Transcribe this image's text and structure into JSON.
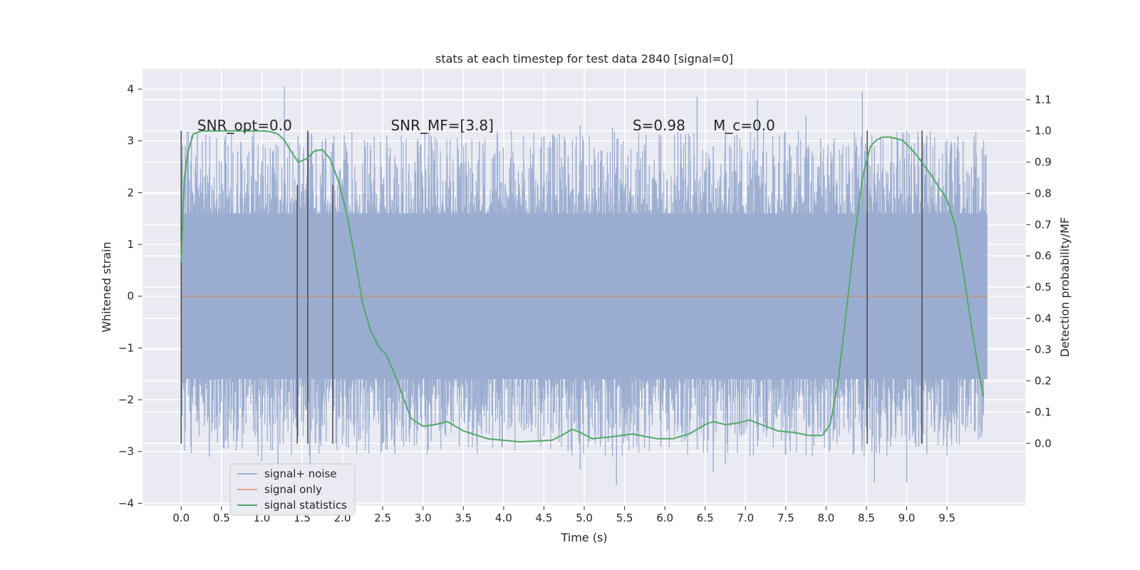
{
  "chart_data": {
    "type": "line",
    "title": "stats at each timestep for test data 2840 [signal=0]",
    "xlabel": "Time (s)",
    "ylabel": "Whitened strain",
    "y2label": "Detection probability/MF",
    "xlim": [
      -0.48,
      10.48
    ],
    "ylim": [
      -4.05,
      4.4
    ],
    "y2lim": [
      -0.2,
      1.2
    ],
    "xticks": [
      0.0,
      0.5,
      1.0,
      1.5,
      2.0,
      2.5,
      3.0,
      3.5,
      4.0,
      4.5,
      5.0,
      5.5,
      6.0,
      6.5,
      7.0,
      7.5,
      8.0,
      8.5,
      9.0,
      9.5
    ],
    "xtick_labels": [
      "0.0",
      "0.5",
      "1.0",
      "1.5",
      "2.0",
      "2.5",
      "3.0",
      "3.5",
      "4.0",
      "4.5",
      "5.0",
      "5.5",
      "6.0",
      "6.5",
      "7.0",
      "7.5",
      "8.0",
      "8.5",
      "9.0",
      "9.5"
    ],
    "yticks": [
      -4,
      -3,
      -2,
      -1,
      0,
      1,
      2,
      3,
      4
    ],
    "ytick_labels": [
      "−4",
      "−3",
      "−2",
      "−1",
      "0",
      "1",
      "2",
      "3",
      "4"
    ],
    "y2ticks": [
      0.0,
      0.1,
      0.2,
      0.3,
      0.4,
      0.5,
      0.6,
      0.7,
      0.8,
      0.9,
      1.0,
      1.1
    ],
    "y2tick_labels": [
      "0.0",
      "0.1",
      "0.2",
      "0.3",
      "0.4",
      "0.5",
      "0.6",
      "0.7",
      "0.8",
      "0.9",
      "1.0",
      "1.1"
    ],
    "grid": true,
    "legend_position": "lower-left",
    "annotations": [
      {
        "text": "SNR_opt=0.0",
        "x": 0.2,
        "y": 3.2
      },
      {
        "text": "SNR_MF=[3.8]",
        "x": 2.6,
        "y": 3.2
      },
      {
        "text": "S=0.98",
        "x": 5.6,
        "y": 3.2
      },
      {
        "text": "M_c=0.0",
        "x": 6.6,
        "y": 3.2
      }
    ],
    "vertical_lines": [
      {
        "x": 0.0,
        "ymin": -2.85,
        "ymax": 3.2
      },
      {
        "x": 1.44,
        "ymin": -2.85,
        "ymax": 2.15
      },
      {
        "x": 1.57,
        "ymin": -2.85,
        "ymax": 3.2
      },
      {
        "x": 1.88,
        "ymin": -2.85,
        "ymax": 2.15
      },
      {
        "x": 8.51,
        "ymin": -2.85,
        "ymax": 3.2
      },
      {
        "x": 9.19,
        "ymin": -2.85,
        "ymax": 3.2
      }
    ],
    "series": [
      {
        "name": "signal+ noise",
        "color": "#4c72b0",
        "axis": "left",
        "x_range": [
          0.0,
          10.0
        ],
        "core_band": [
          -1.6,
          1.6
        ],
        "spikes": [
          [
            0.05,
            2.9,
            -2.6
          ],
          [
            0.12,
            2.6,
            -2.9
          ],
          [
            0.2,
            3.15,
            -2.2
          ],
          [
            0.35,
            2.5,
            -3.1
          ],
          [
            0.55,
            3.1,
            -2.8
          ],
          [
            0.7,
            2.8,
            -2.4
          ],
          [
            0.9,
            3.2,
            -2.6
          ],
          [
            1.0,
            2.6,
            -3.2
          ],
          [
            1.2,
            2.9,
            -3.3
          ],
          [
            1.28,
            4.05,
            -2.4
          ],
          [
            1.45,
            3.1,
            -2.7
          ],
          [
            1.6,
            2.5,
            -3.4
          ],
          [
            1.75,
            3.0,
            -2.5
          ],
          [
            2.05,
            2.8,
            -2.9
          ],
          [
            2.4,
            2.5,
            -2.3
          ],
          [
            2.55,
            3.1,
            -2.7
          ],
          [
            2.65,
            2.7,
            -3.05
          ],
          [
            2.9,
            2.6,
            -2.5
          ],
          [
            3.1,
            3.1,
            -2.8
          ],
          [
            3.3,
            2.7,
            -2.3
          ],
          [
            3.45,
            2.5,
            -2.9
          ],
          [
            3.7,
            3.0,
            -2.5
          ],
          [
            3.95,
            2.8,
            -2.8
          ],
          [
            4.25,
            2.6,
            -2.6
          ],
          [
            4.5,
            3.1,
            -2.7
          ],
          [
            4.8,
            2.7,
            -3.0
          ],
          [
            4.95,
            3.3,
            -3.35
          ],
          [
            5.2,
            2.6,
            -2.9
          ],
          [
            5.35,
            3.25,
            -3.1
          ],
          [
            5.4,
            2.5,
            -3.65
          ],
          [
            5.75,
            2.8,
            -2.4
          ],
          [
            5.95,
            3.1,
            -2.9
          ],
          [
            6.2,
            2.6,
            -2.5
          ],
          [
            6.4,
            3.85,
            -2.7
          ],
          [
            6.6,
            2.9,
            -3.4
          ],
          [
            6.75,
            3.2,
            -3.25
          ],
          [
            6.95,
            2.6,
            -2.7
          ],
          [
            7.15,
            3.8,
            -2.9
          ],
          [
            7.35,
            2.7,
            -2.4
          ],
          [
            7.55,
            2.9,
            -2.8
          ],
          [
            7.75,
            3.5,
            -2.3
          ],
          [
            7.9,
            2.5,
            -2.7
          ],
          [
            8.1,
            3.05,
            -2.6
          ],
          [
            8.45,
            3.95,
            -2.8
          ],
          [
            8.6,
            2.9,
            -3.6
          ],
          [
            8.8,
            2.6,
            -2.9
          ],
          [
            9.0,
            3.2,
            -3.6
          ],
          [
            9.15,
            2.5,
            -2.9
          ],
          [
            9.25,
            3.1,
            -3.05
          ],
          [
            9.5,
            2.7,
            -2.9
          ],
          [
            9.7,
            3.0,
            -2.5
          ],
          [
            9.85,
            2.5,
            -2.6
          ],
          [
            9.95,
            2.2,
            -2.3
          ]
        ]
      },
      {
        "name": "signal only",
        "color": "#dd8452",
        "axis": "left",
        "x": [
          0.0,
          10.0
        ],
        "y": [
          0.0,
          0.0
        ]
      },
      {
        "name": "signal statistics",
        "color": "#55a868",
        "axis": "right",
        "x": [
          0.0,
          0.04,
          0.08,
          0.15,
          0.25,
          0.4,
          0.6,
          0.8,
          1.0,
          1.1,
          1.2,
          1.28,
          1.35,
          1.45,
          1.55,
          1.65,
          1.75,
          1.85,
          1.95,
          2.05,
          2.15,
          2.25,
          2.35,
          2.45,
          2.55,
          2.65,
          2.75,
          2.85,
          3.0,
          3.15,
          3.3,
          3.5,
          3.8,
          4.2,
          4.6,
          4.75,
          4.85,
          4.95,
          5.1,
          5.3,
          5.6,
          5.9,
          6.1,
          6.3,
          6.5,
          6.6,
          6.75,
          6.9,
          7.05,
          7.2,
          7.4,
          7.6,
          7.8,
          7.95,
          8.05,
          8.15,
          8.25,
          8.35,
          8.45,
          8.55,
          8.62,
          8.7,
          8.8,
          8.95,
          9.1,
          9.3,
          9.5,
          9.6,
          9.7,
          9.8,
          9.9,
          9.95
        ],
        "y": [
          0.58,
          0.85,
          0.93,
          0.99,
          1.0,
          1.0,
          1.0,
          1.0,
          1.0,
          0.998,
          0.99,
          0.97,
          0.94,
          0.9,
          0.91,
          0.935,
          0.94,
          0.91,
          0.84,
          0.74,
          0.6,
          0.45,
          0.36,
          0.31,
          0.28,
          0.22,
          0.15,
          0.08,
          0.055,
          0.06,
          0.07,
          0.04,
          0.015,
          0.005,
          0.01,
          0.03,
          0.045,
          0.035,
          0.015,
          0.02,
          0.03,
          0.015,
          0.015,
          0.03,
          0.06,
          0.07,
          0.06,
          0.065,
          0.075,
          0.06,
          0.04,
          0.035,
          0.025,
          0.025,
          0.06,
          0.2,
          0.42,
          0.65,
          0.85,
          0.95,
          0.97,
          0.98,
          0.98,
          0.97,
          0.93,
          0.86,
          0.78,
          0.7,
          0.55,
          0.38,
          0.22,
          0.15
        ]
      }
    ]
  }
}
